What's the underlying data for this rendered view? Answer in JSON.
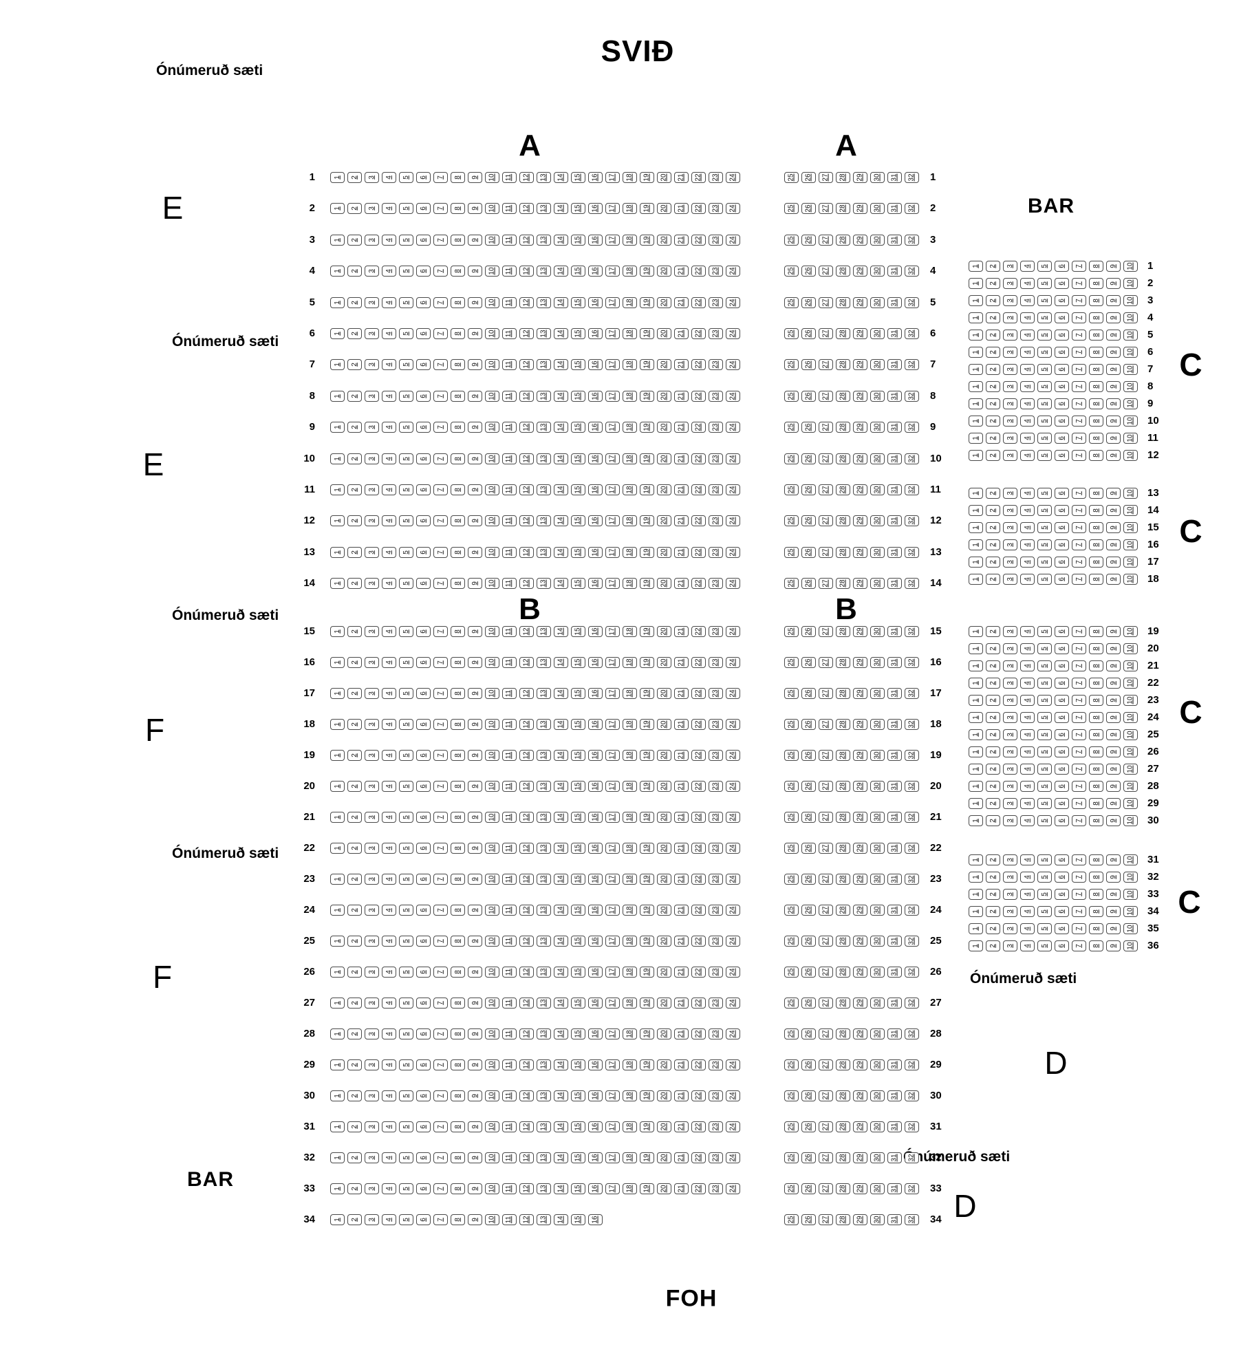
{
  "labels": {
    "unnumbered_top": "Ónúmeruð sæti",
    "stage": "SVIÐ",
    "e_upper": "E",
    "unnumbered_left_1": "Ónúmeruð sæti",
    "e_lower": "E",
    "unnumbered_left_2": "Ónúmeruð sæti",
    "f_upper": "F",
    "unnumbered_left_3": "Ónúmeruð sæti",
    "f_lower": "F",
    "bar_left": "BAR",
    "bar_right": "BAR",
    "c_1": "C",
    "c_2": "C",
    "c_3": "C",
    "c_4": "C",
    "unnumbered_right_1": "Ónúmeruð sæti",
    "d_upper": "D",
    "unnumbered_right_2": "Ónúmeruð sæti",
    "d_lower": "D",
    "foh": "FOH",
    "header_a_left": "A",
    "header_a_right": "A",
    "header_b_left": "B",
    "header_b_right": "B"
  },
  "colors": {
    "seat_border": "#4a4a4a",
    "text": "#000000",
    "background": "#ffffff"
  },
  "seat_map": {
    "main_left": {
      "section_headers": [
        "A",
        "B"
      ],
      "row_label_side": "left",
      "row_rules": [
        {
          "row_start": 1,
          "row_end": 33,
          "seat_from": 1,
          "seat_to": 24
        },
        {
          "row_start": 34,
          "row_end": 34,
          "seat_from": 1,
          "seat_to": 16
        }
      ]
    },
    "main_right": {
      "section_headers": [
        "A",
        "B"
      ],
      "row_label_side": "right",
      "row_rules": [
        {
          "row_start": 1,
          "row_end": 34,
          "seat_from": 25,
          "seat_to": 32
        }
      ]
    },
    "side_c": {
      "section_letter": "C",
      "row_label_side": "right",
      "seat_from": 1,
      "seat_to": 10,
      "groups": [
        {
          "row_start": 1,
          "row_end": 12
        },
        {
          "row_start": 13,
          "row_end": 18
        },
        {
          "row_start": 19,
          "row_end": 30
        },
        {
          "row_start": 31,
          "row_end": 36
        }
      ]
    }
  }
}
